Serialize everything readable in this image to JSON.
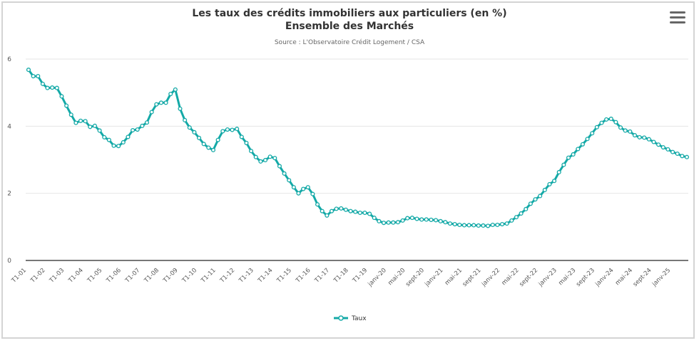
{
  "chart_data": {
    "type": "line",
    "title": "Les taux des crédits immobiliers aux particuliers (en %)",
    "subtitle_line2": "Ensemble des Marchés",
    "source": "Source : L'Observatoire Crédit Logement / CSA",
    "ylim": [
      0,
      6
    ],
    "y_ticks": [
      "0",
      "2",
      "4",
      "6"
    ],
    "grid": true,
    "legend_position": "bottom",
    "x_tick_labels": [
      "T1-01",
      "T1-02",
      "T1-03",
      "T1-04",
      "T1-05",
      "T1-06",
      "T1-07",
      "T1-08",
      "T1-09",
      "T1-10",
      "T1-11",
      "T1-12",
      "T1-13",
      "T1-14",
      "T1-15",
      "T1-16",
      "T1-17",
      "T1-18",
      "T1-19",
      "janv-20",
      "mai-20",
      "sept-20",
      "janv-21",
      "mai-21",
      "sept-21",
      "janv-22",
      "mai-22",
      "sept-22",
      "janv-23",
      "mai-23",
      "sept-23",
      "janv-24",
      "mai-24",
      "sept-24",
      "janv-25"
    ],
    "series": [
      {
        "name": "Taux",
        "color": "#14a9a7",
        "values": [
          5.68,
          5.49,
          5.49,
          5.26,
          5.14,
          5.15,
          5.14,
          4.89,
          4.61,
          4.34,
          4.1,
          4.16,
          4.15,
          3.98,
          4.01,
          3.87,
          3.67,
          3.59,
          3.42,
          3.41,
          3.52,
          3.68,
          3.88,
          3.9,
          4.01,
          4.11,
          4.42,
          4.65,
          4.7,
          4.7,
          4.96,
          5.09,
          4.52,
          4.18,
          3.96,
          3.82,
          3.65,
          3.47,
          3.36,
          3.29,
          3.59,
          3.85,
          3.9,
          3.89,
          3.92,
          3.68,
          3.5,
          3.26,
          3.08,
          2.95,
          2.99,
          3.09,
          3.05,
          2.81,
          2.59,
          2.39,
          2.18,
          2.0,
          2.13,
          2.18,
          1.98,
          1.67,
          1.47,
          1.34,
          1.47,
          1.54,
          1.55,
          1.51,
          1.47,
          1.45,
          1.42,
          1.42,
          1.39,
          1.27,
          1.17,
          1.12,
          1.13,
          1.13,
          1.14,
          1.19,
          1.26,
          1.27,
          1.24,
          1.22,
          1.22,
          1.21,
          1.2,
          1.17,
          1.14,
          1.1,
          1.08,
          1.06,
          1.05,
          1.05,
          1.05,
          1.04,
          1.04,
          1.03,
          1.06,
          1.06,
          1.08,
          1.1,
          1.19,
          1.29,
          1.4,
          1.53,
          1.69,
          1.82,
          1.92,
          2.1,
          2.27,
          2.37,
          2.63,
          2.85,
          3.06,
          3.16,
          3.32,
          3.46,
          3.62,
          3.79,
          3.97,
          4.1,
          4.2,
          4.22,
          4.12,
          3.96,
          3.87,
          3.84,
          3.73,
          3.67,
          3.66,
          3.61,
          3.53,
          3.45,
          3.37,
          3.31,
          3.23,
          3.18,
          3.11,
          3.08
        ]
      }
    ]
  },
  "menu_icon": "hamburger-menu-icon"
}
